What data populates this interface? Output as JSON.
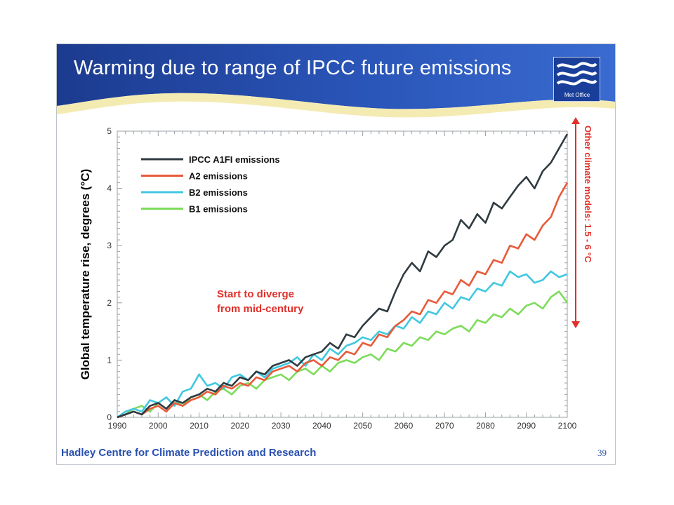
{
  "slide": {
    "title": "Warming due to range of IPCC future emissions",
    "logo_text": "Met Office",
    "footer": "Hadley Centre for Climate Prediction and Research",
    "page_number": "39",
    "colors": {
      "header_dark": "#1c3b8f",
      "header_light": "#3a6bd0",
      "accent_wave": "#f2e8a6",
      "footer_text": "#2850b0"
    }
  },
  "chart_data": {
    "type": "line",
    "title": "",
    "xlabel": "",
    "ylabel": "Global temperature rise, degrees (°C)",
    "xlim": [
      1990,
      2100
    ],
    "ylim": [
      0,
      5
    ],
    "xticks": [
      1990,
      2000,
      2010,
      2020,
      2030,
      2040,
      2050,
      2060,
      2070,
      2080,
      2090,
      2100
    ],
    "yticks": [
      0,
      1,
      2,
      3,
      4,
      5
    ],
    "grid": false,
    "legend_position": "top-left",
    "series": [
      {
        "name": "IPCC A1FI emissions",
        "color": "#2f3b40",
        "x": [
          1990,
          1992,
          1994,
          1996,
          1998,
          2000,
          2002,
          2004,
          2006,
          2008,
          2010,
          2012,
          2014,
          2016,
          2018,
          2020,
          2022,
          2024,
          2026,
          2028,
          2030,
          2032,
          2034,
          2036,
          2038,
          2040,
          2042,
          2044,
          2046,
          2048,
          2050,
          2052,
          2054,
          2056,
          2058,
          2060,
          2062,
          2064,
          2066,
          2068,
          2070,
          2072,
          2074,
          2076,
          2078,
          2080,
          2082,
          2084,
          2086,
          2088,
          2090,
          2092,
          2094,
          2096,
          2098,
          2100
        ],
        "y": [
          0,
          0.05,
          0.1,
          0.05,
          0.2,
          0.25,
          0.15,
          0.3,
          0.25,
          0.35,
          0.4,
          0.5,
          0.45,
          0.6,
          0.55,
          0.7,
          0.65,
          0.8,
          0.75,
          0.9,
          0.95,
          1.0,
          0.9,
          1.05,
          1.1,
          1.15,
          1.3,
          1.2,
          1.45,
          1.4,
          1.6,
          1.75,
          1.9,
          1.85,
          2.2,
          2.5,
          2.7,
          2.55,
          2.9,
          2.8,
          3.0,
          3.1,
          3.45,
          3.3,
          3.55,
          3.4,
          3.75,
          3.65,
          3.85,
          4.05,
          4.2,
          4.0,
          4.3,
          4.45,
          4.7,
          4.95
        ]
      },
      {
        "name": "A2 emissions",
        "color": "#e85a3a",
        "x": [
          1990,
          1992,
          1994,
          1996,
          1998,
          2000,
          2002,
          2004,
          2006,
          2008,
          2010,
          2012,
          2014,
          2016,
          2018,
          2020,
          2022,
          2024,
          2026,
          2028,
          2030,
          2032,
          2034,
          2036,
          2038,
          2040,
          2042,
          2044,
          2046,
          2048,
          2050,
          2052,
          2054,
          2056,
          2058,
          2060,
          2062,
          2064,
          2066,
          2068,
          2070,
          2072,
          2074,
          2076,
          2078,
          2080,
          2082,
          2084,
          2086,
          2088,
          2090,
          2092,
          2094,
          2096,
          2098,
          2100
        ],
        "y": [
          0,
          0.05,
          0.1,
          0.05,
          0.15,
          0.2,
          0.1,
          0.25,
          0.2,
          0.3,
          0.35,
          0.45,
          0.4,
          0.55,
          0.5,
          0.6,
          0.55,
          0.7,
          0.65,
          0.8,
          0.85,
          0.9,
          0.8,
          0.95,
          1.0,
          0.9,
          1.05,
          1.0,
          1.15,
          1.1,
          1.3,
          1.25,
          1.45,
          1.4,
          1.6,
          1.7,
          1.85,
          1.8,
          2.05,
          2.0,
          2.2,
          2.15,
          2.4,
          2.3,
          2.55,
          2.5,
          2.75,
          2.7,
          3.0,
          2.95,
          3.2,
          3.1,
          3.35,
          3.5,
          3.85,
          4.1
        ]
      },
      {
        "name": "B2 emissions",
        "color": "#40c8e0",
        "x": [
          1990,
          1992,
          1994,
          1996,
          1998,
          2000,
          2002,
          2004,
          2006,
          2008,
          2010,
          2012,
          2014,
          2016,
          2018,
          2020,
          2022,
          2024,
          2026,
          2028,
          2030,
          2032,
          2034,
          2036,
          2038,
          2040,
          2042,
          2044,
          2046,
          2048,
          2050,
          2052,
          2054,
          2056,
          2058,
          2060,
          2062,
          2064,
          2066,
          2068,
          2070,
          2072,
          2074,
          2076,
          2078,
          2080,
          2082,
          2084,
          2086,
          2088,
          2090,
          2092,
          2094,
          2096,
          2098,
          2100
        ],
        "y": [
          0,
          0.1,
          0.15,
          0.1,
          0.3,
          0.25,
          0.35,
          0.2,
          0.45,
          0.5,
          0.75,
          0.55,
          0.6,
          0.5,
          0.7,
          0.75,
          0.65,
          0.8,
          0.7,
          0.85,
          0.9,
          0.95,
          1.05,
          0.9,
          1.1,
          1.0,
          1.2,
          1.1,
          1.25,
          1.3,
          1.4,
          1.35,
          1.5,
          1.45,
          1.6,
          1.55,
          1.75,
          1.65,
          1.85,
          1.8,
          2.0,
          1.9,
          2.1,
          2.05,
          2.25,
          2.2,
          2.35,
          2.3,
          2.55,
          2.45,
          2.5,
          2.35,
          2.4,
          2.55,
          2.45,
          2.5
        ]
      },
      {
        "name": "B1 emissions",
        "color": "#7ddc5a",
        "x": [
          1990,
          1992,
          1994,
          1996,
          1998,
          2000,
          2002,
          2004,
          2006,
          2008,
          2010,
          2012,
          2014,
          2016,
          2018,
          2020,
          2022,
          2024,
          2026,
          2028,
          2030,
          2032,
          2034,
          2036,
          2038,
          2040,
          2042,
          2044,
          2046,
          2048,
          2050,
          2052,
          2054,
          2056,
          2058,
          2060,
          2062,
          2064,
          2066,
          2068,
          2070,
          2072,
          2074,
          2076,
          2078,
          2080,
          2082,
          2084,
          2086,
          2088,
          2090,
          2092,
          2094,
          2096,
          2098,
          2100
        ],
        "y": [
          0,
          0.05,
          0.15,
          0.2,
          0.1,
          0.25,
          0.15,
          0.3,
          0.2,
          0.35,
          0.4,
          0.3,
          0.45,
          0.5,
          0.4,
          0.55,
          0.6,
          0.5,
          0.65,
          0.7,
          0.75,
          0.65,
          0.8,
          0.85,
          0.75,
          0.9,
          0.8,
          0.95,
          1.0,
          0.95,
          1.05,
          1.1,
          1.0,
          1.2,
          1.15,
          1.3,
          1.25,
          1.4,
          1.35,
          1.5,
          1.45,
          1.55,
          1.6,
          1.5,
          1.7,
          1.65,
          1.8,
          1.75,
          1.9,
          1.8,
          1.95,
          2.0,
          1.9,
          2.1,
          2.2,
          2.0
        ]
      }
    ],
    "annotations": [
      {
        "text": "Start to diverge\nfrom mid-century",
        "line1": "Start to diverge",
        "line2": "from mid-century",
        "color": "#e0302a"
      },
      {
        "text": "Other climate models: 1.5 - 6 °C",
        "color": "#e0302a",
        "range": [
          1.5,
          6
        ]
      }
    ]
  }
}
